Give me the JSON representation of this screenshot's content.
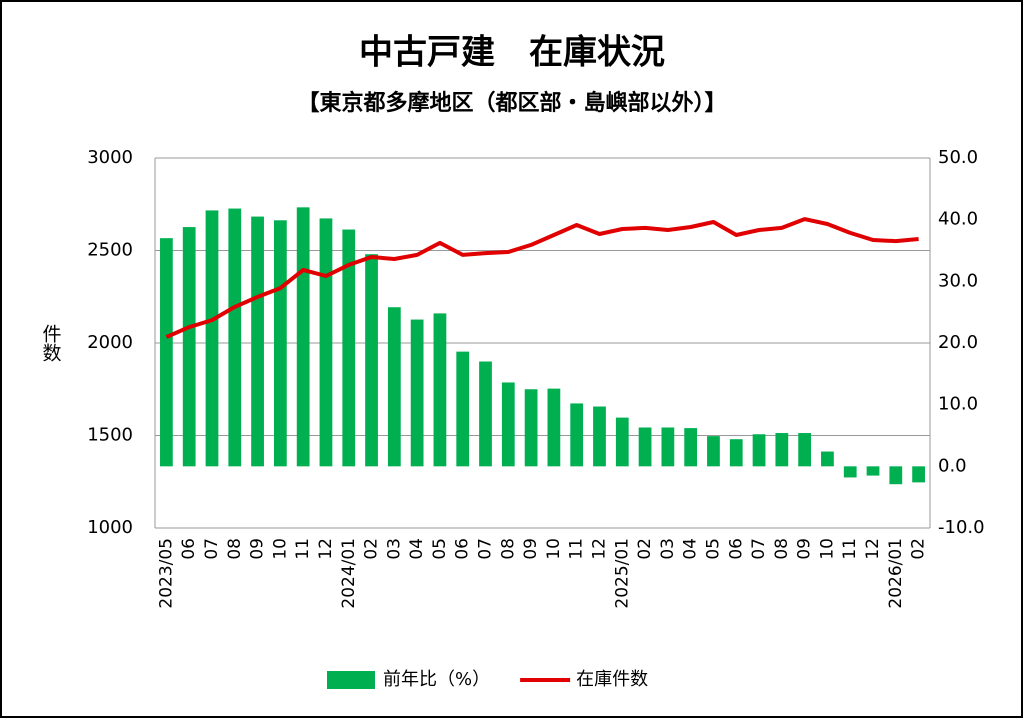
{
  "chart_data": {
    "type": "bar-line",
    "title": "中古戸建　在庫状況",
    "subtitle": "【東京都多摩地区（都区部・島嶼部以外）】",
    "y_label": "件数",
    "categories": [
      "2023/05",
      "06",
      "07",
      "08",
      "09",
      "10",
      "11",
      "12",
      "2024/01",
      "02",
      "03",
      "04",
      "05",
      "06",
      "07",
      "08",
      "09",
      "10",
      "11",
      "12",
      "2025/01",
      "02",
      "03",
      "04",
      "05",
      "06",
      "07",
      "08",
      "09",
      "10",
      "11",
      "12",
      "2026/01",
      "02"
    ],
    "series": [
      {
        "name": "前年比（%）",
        "type": "bar",
        "axis": "y2",
        "color": "#00b050",
        "values": [
          37.0,
          38.8,
          41.5,
          41.8,
          40.5,
          39.9,
          42.0,
          40.2,
          38.4,
          34.4,
          25.8,
          23.8,
          24.8,
          18.6,
          17.0,
          13.6,
          12.5,
          12.6,
          10.2,
          9.7,
          7.9,
          6.3,
          6.3,
          6.2,
          4.9,
          4.4,
          5.2,
          5.4,
          5.4,
          2.4,
          -1.8,
          -1.5,
          -2.9,
          -2.6
        ]
      },
      {
        "name": "在庫件数",
        "type": "line",
        "color": "#e00000",
        "values": [
          2032,
          2086,
          2124,
          2195,
          2249,
          2297,
          2395,
          2362,
          2422,
          2465,
          2454,
          2476,
          2541,
          2476,
          2486,
          2492,
          2530,
          2584,
          2638,
          2589,
          2616,
          2622,
          2611,
          2627,
          2654,
          2584,
          2611,
          2622,
          2670,
          2643,
          2595,
          2557,
          2551,
          2562
        ]
      }
    ],
    "ylim": [
      1000,
      3000
    ],
    "yticks": [
      1000,
      1500,
      2000,
      2500,
      3000
    ],
    "y2lim": [
      -10,
      50
    ],
    "y2ticks": [
      {
        "value": -10,
        "label": "-10.0"
      },
      {
        "value": 0,
        "label": "0.0"
      },
      {
        "value": 10,
        "label": "10.0"
      },
      {
        "value": 20,
        "label": "20.0"
      },
      {
        "value": 30,
        "label": "30.0"
      },
      {
        "value": 40,
        "label": "40.0"
      },
      {
        "value": 50,
        "label": "50.0"
      }
    ],
    "y2_negative_label_color": "#e00000",
    "grid": true,
    "legend": "bottom"
  }
}
